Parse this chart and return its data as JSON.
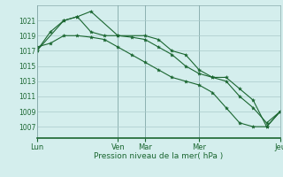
{
  "background_color": "#d4eeed",
  "grid_color": "#aacaca",
  "line_color": "#1a6630",
  "marker_color": "#1a6630",
  "xlabel": "Pression niveau de la mer( hPa )",
  "ylim": [
    1005.5,
    1023.0
  ],
  "yticks": [
    1007,
    1009,
    1011,
    1013,
    1015,
    1017,
    1019,
    1021
  ],
  "xtick_labels": [
    "Lun",
    "Ven",
    "Mar",
    "Mer",
    "Jeu"
  ],
  "xtick_positions": [
    0,
    36,
    48,
    72,
    108
  ],
  "xlim": [
    0,
    108
  ],
  "series1_x": [
    0,
    12,
    18,
    24,
    36,
    48,
    54,
    60,
    66,
    72,
    78,
    84,
    90,
    96,
    102,
    108
  ],
  "series1_y": [
    1017.0,
    1021.0,
    1021.5,
    1022.2,
    1019.0,
    1019.0,
    1018.5,
    1017.0,
    1016.5,
    1014.5,
    1013.5,
    1013.5,
    1012.0,
    1010.5,
    1007.0,
    1009.0
  ],
  "series2_x": [
    0,
    6,
    12,
    18,
    24,
    30,
    36,
    42,
    48,
    54,
    60,
    66,
    72,
    78,
    84,
    90,
    96,
    102,
    108
  ],
  "series2_y": [
    1017.0,
    1019.5,
    1021.0,
    1021.5,
    1019.5,
    1019.0,
    1019.0,
    1018.8,
    1018.5,
    1017.5,
    1016.5,
    1015.0,
    1014.0,
    1013.5,
    1013.0,
    1011.0,
    1009.5,
    1007.5,
    1009.0
  ],
  "series3_x": [
    0,
    6,
    12,
    18,
    24,
    30,
    36,
    42,
    48,
    54,
    60,
    66,
    72,
    78,
    84,
    90,
    96,
    102,
    108
  ],
  "series3_y": [
    1017.5,
    1018.0,
    1019.0,
    1019.0,
    1018.8,
    1018.5,
    1017.5,
    1016.5,
    1015.5,
    1014.5,
    1013.5,
    1013.0,
    1012.5,
    1011.5,
    1009.5,
    1007.5,
    1007.0,
    1007.0,
    1009.0
  ]
}
